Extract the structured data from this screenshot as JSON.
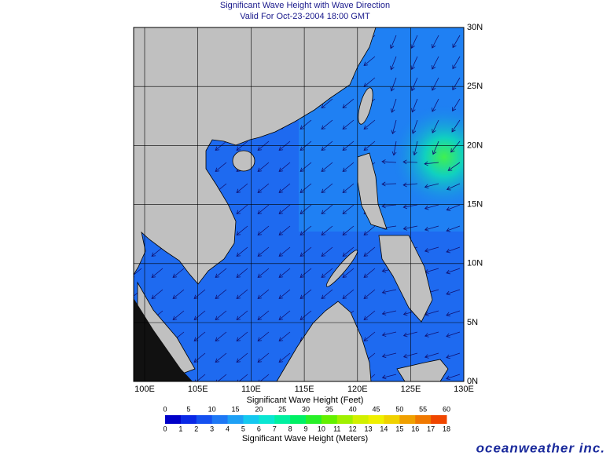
{
  "header": {
    "title": "Significant Wave Height with Wave Direction",
    "subtitle": "Valid For Oct-23-2004 18:00 GMT"
  },
  "map": {
    "lon_labels": [
      "100E",
      "105E",
      "110E",
      "115E",
      "120E",
      "125E",
      "130E"
    ],
    "lat_labels": [
      "30N",
      "25N",
      "20N",
      "15N",
      "10N",
      "5N",
      "0N"
    ]
  },
  "colorbar": {
    "feet_title": "Significant Wave Height (Feet)",
    "meters_title": "Significant Wave Height (Meters)",
    "feet_labels": [
      "0",
      "5",
      "10",
      "15",
      "20",
      "25",
      "30",
      "35",
      "40",
      "45",
      "50",
      "55",
      "60"
    ],
    "meter_labels": [
      "0",
      "1",
      "2",
      "3",
      "4",
      "5",
      "6",
      "7",
      "8",
      "9",
      "10",
      "11",
      "12",
      "13",
      "14",
      "15",
      "16",
      "17",
      "18"
    ],
    "colors": [
      "#0000c8",
      "#0a28e6",
      "#1450f0",
      "#1e78f5",
      "#1ea0f5",
      "#14c8f0",
      "#0ae6d2",
      "#00f0a0",
      "#00f064",
      "#28f028",
      "#64f000",
      "#a0f000",
      "#d2f000",
      "#f0f000",
      "#f0d200",
      "#f0a000",
      "#f07800",
      "#f04600"
    ]
  },
  "logo": "oceanweather inc."
}
